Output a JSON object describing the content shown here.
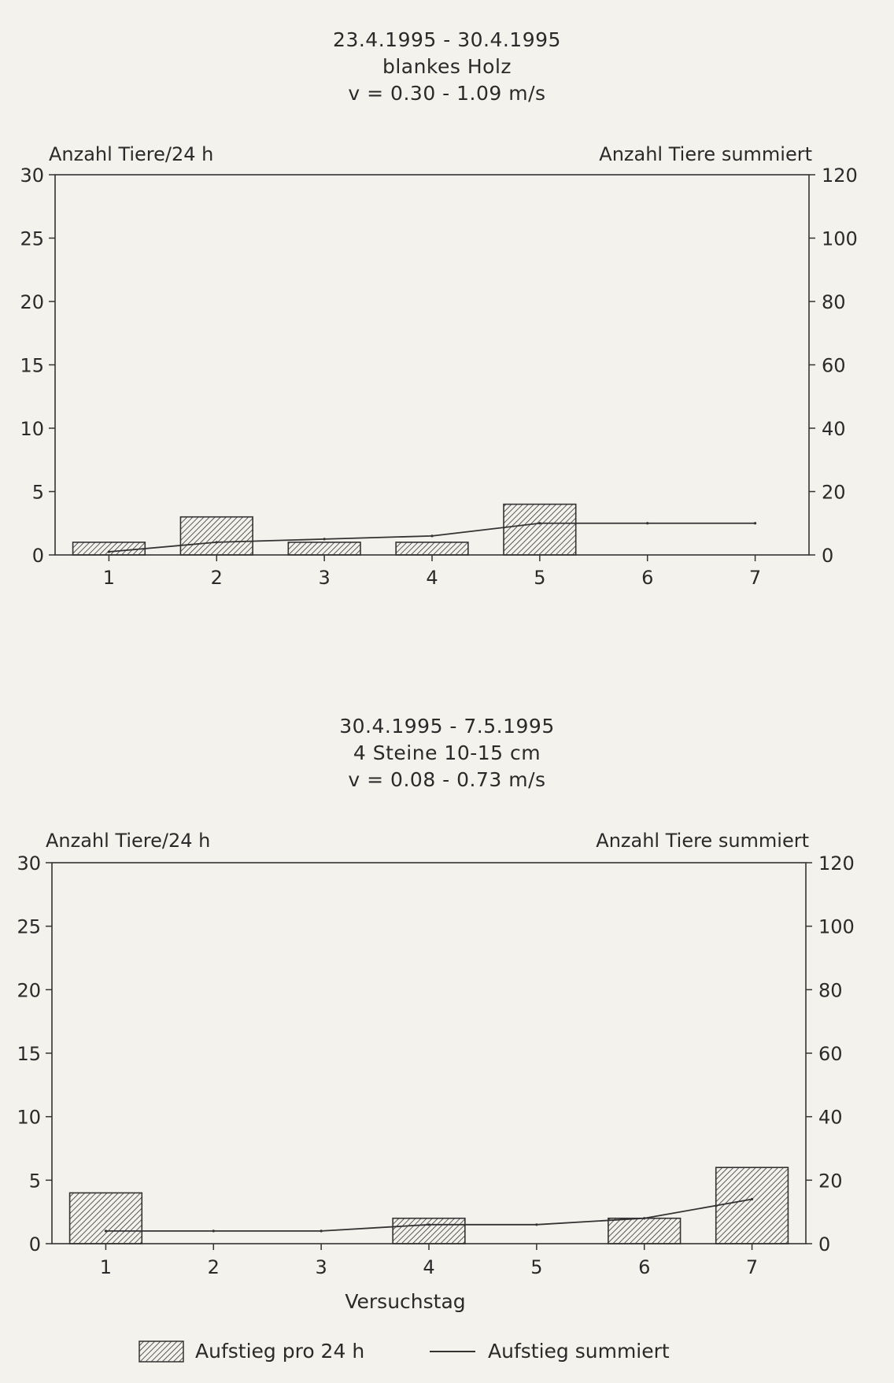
{
  "chart_data": [
    {
      "type": "bar+line",
      "title_lines": [
        "23.4.1995 - 30.4.1995",
        "blankes Holz",
        "v = 0.30 - 1.09 m/s"
      ],
      "ylabel_left": "Anzahl Tiere/24 h",
      "ylabel_right": "Anzahl Tiere summiert",
      "xlabel": "",
      "categories": [
        "1",
        "2",
        "3",
        "4",
        "5",
        "6",
        "7"
      ],
      "ylim_left": [
        0,
        30
      ],
      "ylim_right": [
        0,
        120
      ],
      "yticks_left": [
        "0",
        "5",
        "10",
        "15",
        "20",
        "25",
        "30"
      ],
      "yticks_right": [
        "0",
        "20",
        "40",
        "60",
        "80",
        "100",
        "120"
      ],
      "series": [
        {
          "name": "Aufstieg pro 24 h",
          "type": "bar",
          "axis": "left",
          "values": [
            1,
            3,
            1,
            1,
            4,
            0,
            0
          ]
        },
        {
          "name": "Aufstieg summiert",
          "type": "line",
          "axis": "right",
          "values": [
            1,
            4,
            5,
            6,
            10,
            10,
            10
          ]
        }
      ]
    },
    {
      "type": "bar+line",
      "title_lines": [
        "30.4.1995 - 7.5.1995",
        "4 Steine 10-15 cm",
        "v = 0.08 - 0.73 m/s"
      ],
      "ylabel_left": "Anzahl Tiere/24 h",
      "ylabel_right": "Anzahl Tiere summiert",
      "xlabel": "Versuchstag",
      "categories": [
        "1",
        "2",
        "3",
        "4",
        "5",
        "6",
        "7"
      ],
      "ylim_left": [
        0,
        30
      ],
      "ylim_right": [
        0,
        120
      ],
      "yticks_left": [
        "0",
        "5",
        "10",
        "15",
        "20",
        "25",
        "30"
      ],
      "yticks_right": [
        "0",
        "20",
        "40",
        "60",
        "80",
        "100",
        "120"
      ],
      "series": [
        {
          "name": "Aufstieg pro 24 h",
          "type": "bar",
          "axis": "left",
          "values": [
            4,
            0,
            0,
            2,
            0,
            2,
            6
          ]
        },
        {
          "name": "Aufstieg summiert",
          "type": "line",
          "axis": "right",
          "values": [
            4,
            4,
            4,
            6,
            6,
            8,
            14
          ]
        }
      ]
    }
  ],
  "legend": {
    "bar_label": "Aufstieg pro 24 h",
    "line_label": "Aufstieg summiert"
  }
}
